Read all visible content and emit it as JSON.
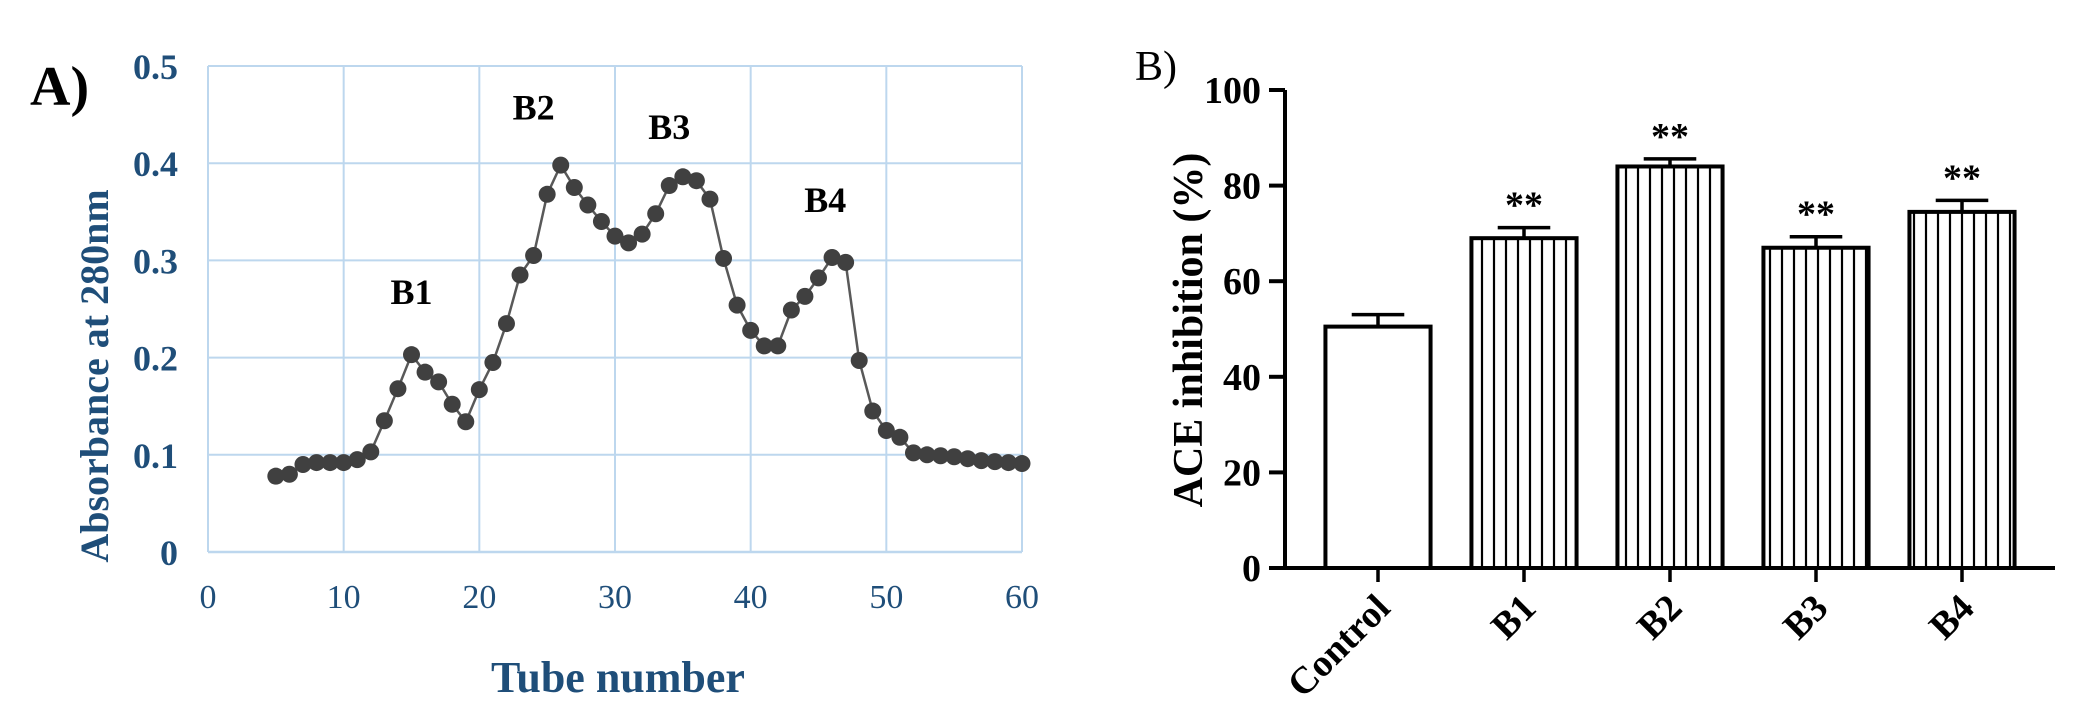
{
  "panel_a": {
    "label": "A)",
    "peak_labels": [
      {
        "text": "B1",
        "x": 15,
        "y": 0.255
      },
      {
        "text": "B2",
        "x": 24,
        "y": 0.445
      },
      {
        "text": "B3",
        "x": 34,
        "y": 0.425
      },
      {
        "text": "B4",
        "x": 45.5,
        "y": 0.35
      }
    ]
  },
  "panel_b": {
    "label": "B)",
    "significance_label": "**"
  },
  "chart_data": [
    {
      "type": "line",
      "title": "",
      "xlabel": "Tube number",
      "ylabel": "Absorbance at 280nm",
      "xlim": [
        0,
        60
      ],
      "ylim": [
        0,
        0.5
      ],
      "x_ticks": [
        0,
        10,
        20,
        30,
        40,
        50,
        60
      ],
      "y_ticks": [
        0,
        0.1,
        0.2,
        0.3,
        0.4,
        0.5
      ],
      "y_tick_labels": [
        "0",
        "0.1",
        "0.2",
        "0.3",
        "0.4",
        "0.5"
      ],
      "grid": true,
      "colors": {
        "axis_text": "#1f4e79",
        "grid": "#bdd7ee",
        "line": "#595959",
        "marker": "#404040"
      },
      "series": [
        {
          "x": [
            5,
            6,
            7,
            8,
            9,
            10,
            11,
            12,
            13,
            14,
            15,
            16,
            17,
            18,
            19,
            20,
            21,
            22,
            23,
            24,
            25,
            26,
            27,
            28,
            29,
            30,
            31,
            32,
            33,
            34,
            35,
            36,
            37,
            38,
            39,
            40,
            41,
            42,
            43,
            44,
            45,
            46,
            47,
            48,
            49,
            50,
            51,
            52,
            53,
            54,
            55,
            56,
            57,
            58,
            59,
            60
          ],
          "y": [
            0.078,
            0.08,
            0.09,
            0.092,
            0.092,
            0.092,
            0.095,
            0.103,
            0.135,
            0.168,
            0.203,
            0.185,
            0.175,
            0.152,
            0.134,
            0.167,
            0.195,
            0.235,
            0.285,
            0.305,
            0.368,
            0.398,
            0.375,
            0.357,
            0.34,
            0.325,
            0.318,
            0.327,
            0.348,
            0.377,
            0.386,
            0.382,
            0.363,
            0.302,
            0.254,
            0.228,
            0.212,
            0.212,
            0.249,
            0.263,
            0.282,
            0.303,
            0.298,
            0.197,
            0.145,
            0.125,
            0.118,
            0.102,
            0.1,
            0.099,
            0.098,
            0.096,
            0.094,
            0.093,
            0.092,
            0.091
          ]
        }
      ]
    },
    {
      "type": "bar",
      "title": "",
      "xlabel": "",
      "ylabel": "ACE inhibition (%)",
      "ylim": [
        0,
        100
      ],
      "y_ticks": [
        0,
        20,
        40,
        60,
        80,
        100
      ],
      "categories": [
        "Control",
        "B1",
        "B2",
        "B3",
        "B4"
      ],
      "values": [
        50.5,
        69,
        84,
        67,
        74.5
      ],
      "errors": [
        2.5,
        2.2,
        1.6,
        2.3,
        2.4
      ],
      "significance": [
        "",
        "**",
        "**",
        "**",
        "**"
      ],
      "hatched": [
        false,
        true,
        true,
        true,
        true
      ],
      "colors": {
        "bar_fill": "#ffffff",
        "bar_edge": "#000000",
        "hatch": "#000000"
      }
    }
  ]
}
